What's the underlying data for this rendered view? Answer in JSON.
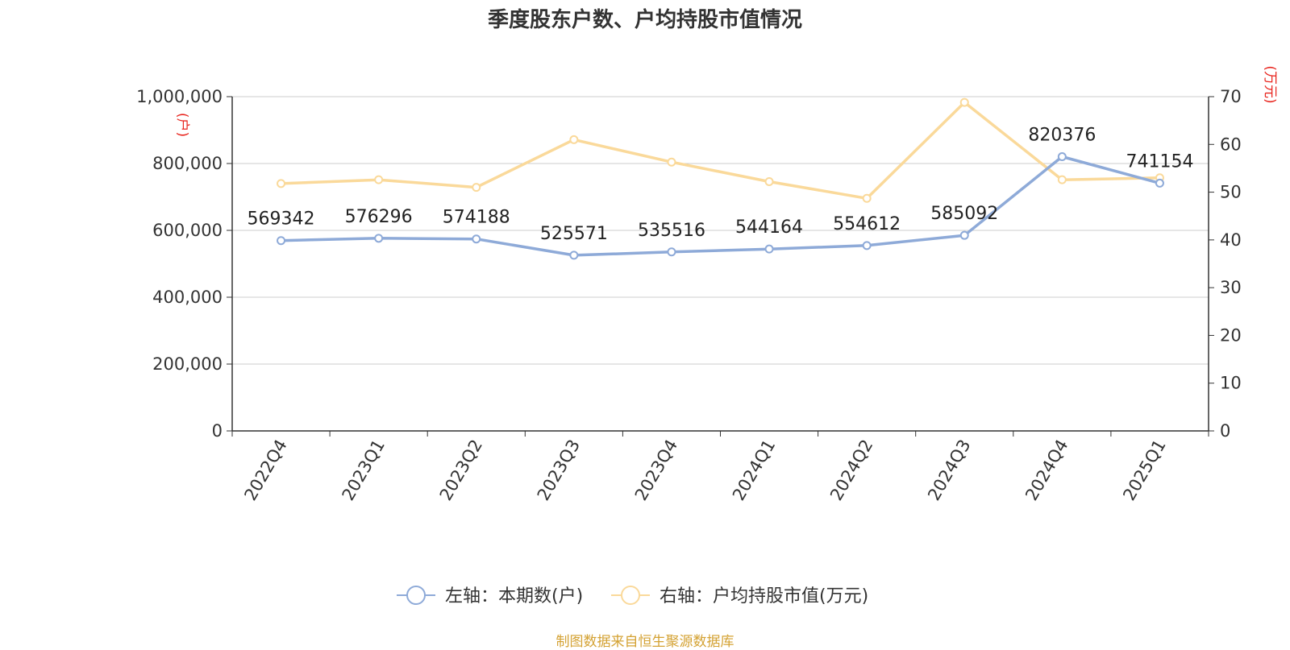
{
  "chart_data": {
    "type": "line",
    "title": "季度股东户数、户均持股市值情况",
    "categories": [
      "2022Q4",
      "2023Q1",
      "2023Q2",
      "2023Q3",
      "2023Q4",
      "2024Q1",
      "2024Q2",
      "2024Q3",
      "2024Q4",
      "2025Q1"
    ],
    "series": [
      {
        "name": "左轴：本期数(户)",
        "axis": "left",
        "color": "#8eaad8",
        "values": [
          569342,
          576296,
          574188,
          525571,
          535516,
          544164,
          554612,
          585092,
          820376,
          741154
        ],
        "data_labels": [
          "569342",
          "576296",
          "574188",
          "525571",
          "535516",
          "544164",
          "554612",
          "585092",
          "820376",
          "741154"
        ]
      },
      {
        "name": "右轴：户均持股市值(万元)",
        "axis": "right",
        "color": "#fad99a",
        "values": [
          51.8,
          52.6,
          51.0,
          61.0,
          56.3,
          52.2,
          48.7,
          68.8,
          52.6,
          53.0
        ]
      }
    ],
    "left_axis": {
      "unit": "(户)",
      "ylim": [
        0,
        1000000
      ],
      "ticks": [
        0,
        200000,
        400000,
        600000,
        800000,
        1000000
      ],
      "tick_labels": [
        "0",
        "200,000",
        "400,000",
        "600,000",
        "800,000",
        "1,000,000"
      ]
    },
    "right_axis": {
      "unit": "(万元)",
      "ylim": [
        0,
        70
      ],
      "ticks": [
        0,
        10,
        20,
        30,
        40,
        50,
        60,
        70
      ],
      "tick_labels": [
        "0",
        "10",
        "20",
        "30",
        "40",
        "50",
        "60",
        "70"
      ]
    },
    "grid": true,
    "legend_position": "bottom-center",
    "legend": [
      "左轴：本期数(户)",
      "右轴：户均持股市值(万元)"
    ],
    "source_note": "制图数据来自恒生聚源数据库",
    "colors": {
      "axis_unit": "#e8251e",
      "axis_line": "#333333",
      "grid": "#cccccc",
      "text": "#333333",
      "source": "#d4a233"
    }
  }
}
